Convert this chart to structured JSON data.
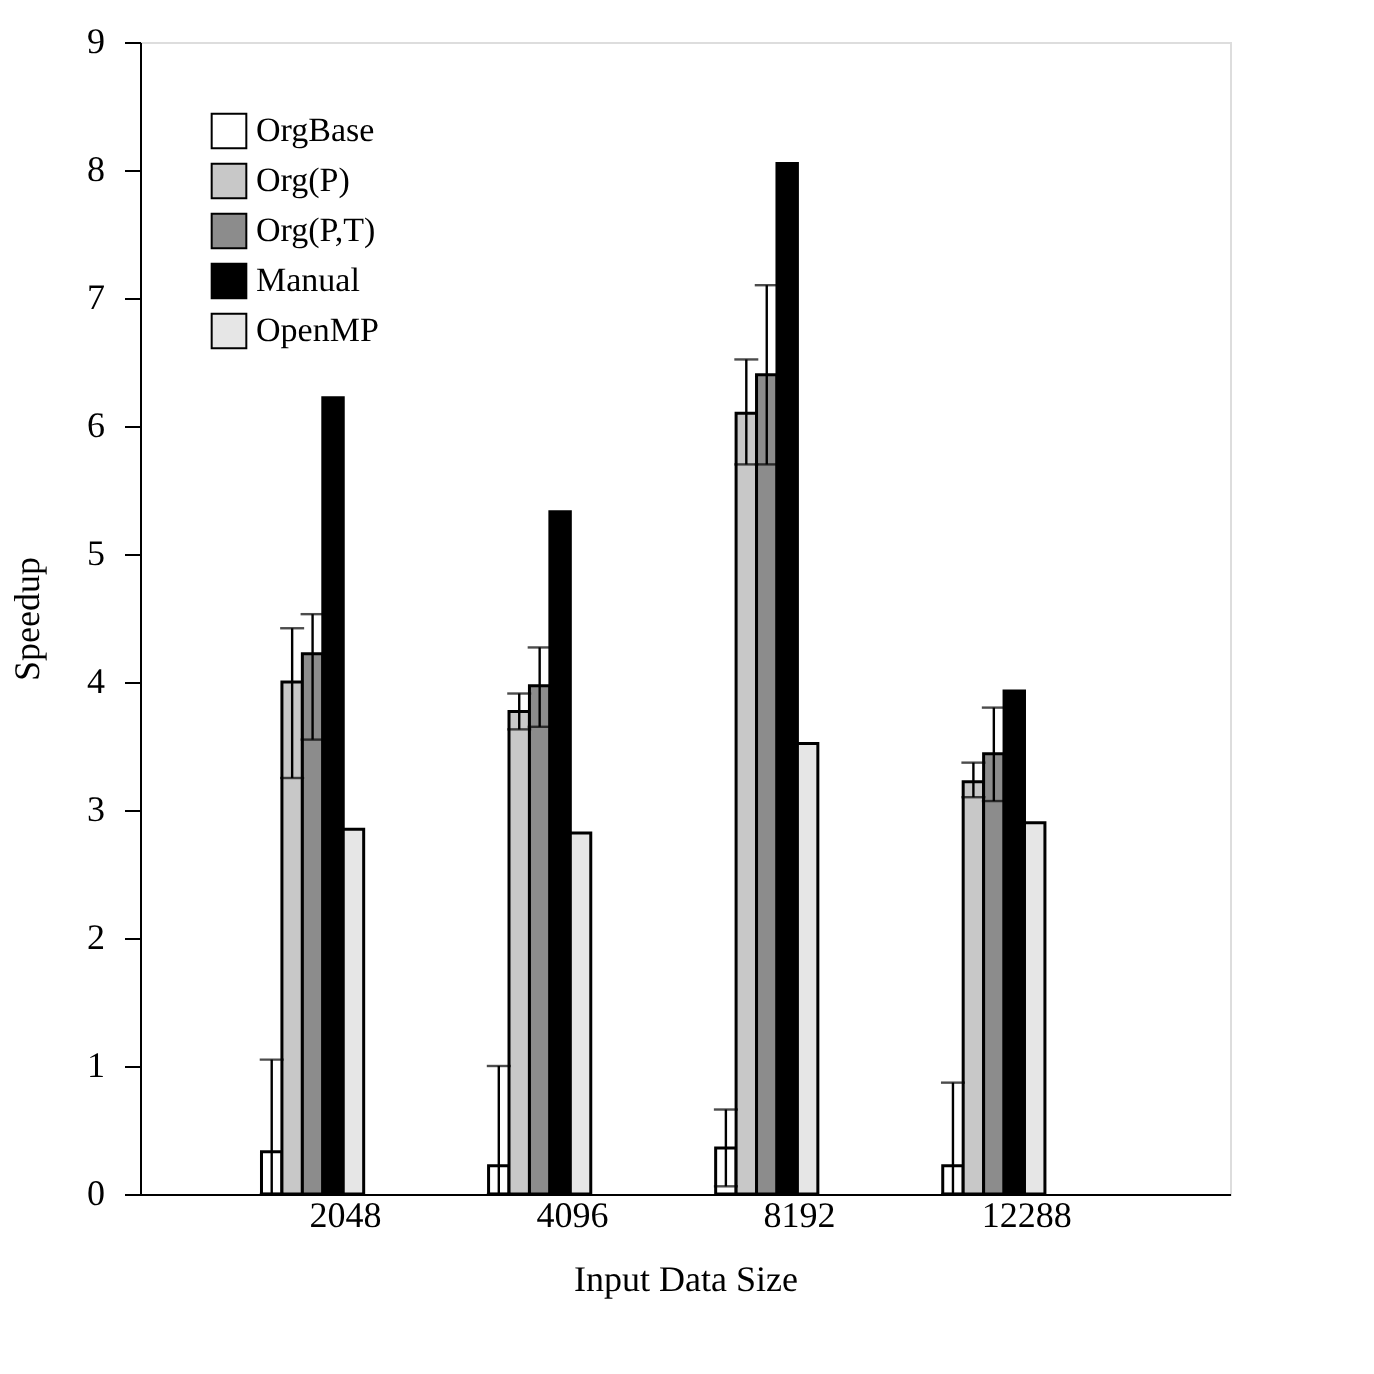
{
  "chart_data": {
    "type": "bar",
    "xlabel": "Input Data Size",
    "ylabel": "Speedup",
    "categories": [
      "2048",
      "4096",
      "8192",
      "12288"
    ],
    "ylim": [
      0,
      9
    ],
    "yticks": [
      0,
      1,
      2,
      3,
      4,
      5,
      6,
      7,
      8,
      9
    ],
    "grid": false,
    "legend": "top left",
    "series": [
      {
        "name": "OrgBase",
        "color": "#ffffff",
        "values": [
          0.33,
          0.22,
          0.36,
          0.22
        ],
        "errors": [
          [
            0,
            1.05
          ],
          [
            0,
            1.0
          ],
          [
            0.06,
            0.66
          ],
          [
            0,
            0.87
          ]
        ]
      },
      {
        "name": "Org(P)",
        "color": "#c8c8c8",
        "values": [
          4.0,
          3.77,
          6.1,
          3.22
        ],
        "errors": [
          [
            3.25,
            4.42
          ],
          [
            3.63,
            3.91
          ],
          [
            5.7,
            6.52
          ],
          [
            3.1,
            3.37
          ]
        ]
      },
      {
        "name": "Org(P,T)",
        "color": "#8c8c8c",
        "values": [
          4.22,
          3.97,
          6.4,
          3.44
        ],
        "errors": [
          [
            3.55,
            4.53
          ],
          [
            3.65,
            4.27
          ],
          [
            5.7,
            7.1
          ],
          [
            3.07,
            3.8
          ]
        ]
      },
      {
        "name": "Manual",
        "color": "#000000",
        "values": [
          6.22,
          5.33,
          8.05,
          3.93
        ]
      },
      {
        "name": "OpenMP",
        "color": "#e6e6e6",
        "values": [
          2.85,
          2.82,
          3.52,
          2.9
        ]
      }
    ]
  }
}
